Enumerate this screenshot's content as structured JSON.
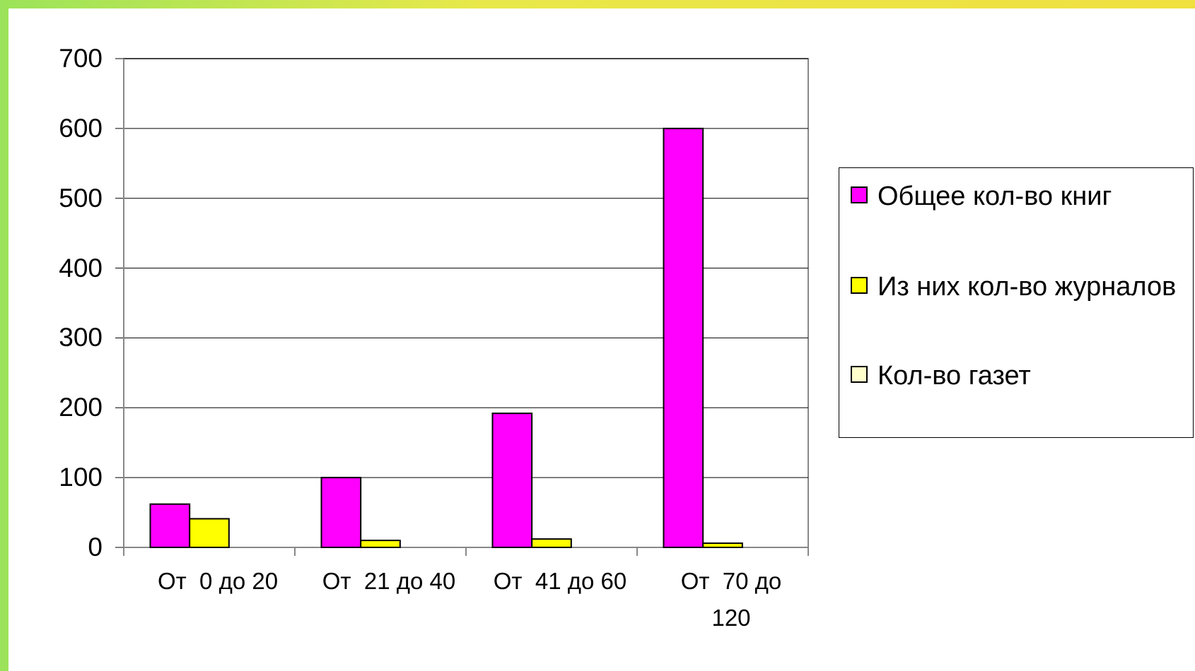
{
  "chart_data": {
    "type": "bar",
    "categories": [
      "От  0 до 20",
      "От  21 до 40",
      "От  41 до 60",
      "От  70 до 120"
    ],
    "series": [
      {
        "name": "Общее кол-во книг",
        "color": "#ff00ff",
        "values": [
          62,
          100,
          192,
          600
        ]
      },
      {
        "name": "Из них кол-во журналов",
        "color": "#ffff00",
        "values": [
          41,
          10,
          12,
          6
        ]
      },
      {
        "name": "Кол-во газет",
        "color": "#ffffcc",
        "values": [
          0,
          0,
          0,
          0
        ]
      }
    ],
    "ylim": [
      0,
      700
    ],
    "yticks": [
      0,
      100,
      200,
      300,
      400,
      500,
      600,
      700
    ],
    "grid": true,
    "legend": "right"
  }
}
